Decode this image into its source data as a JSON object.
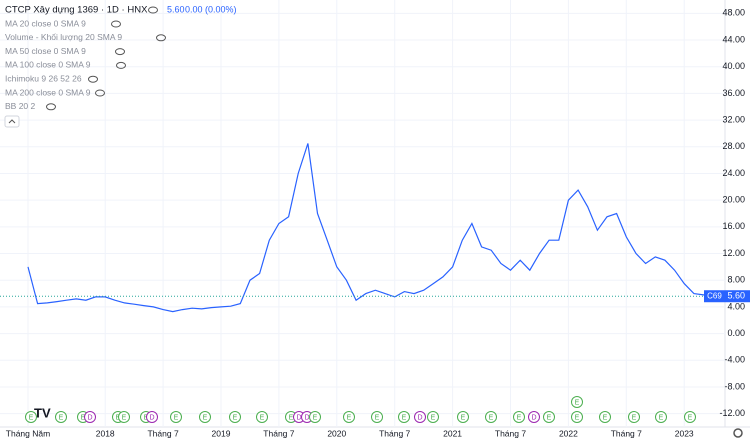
{
  "chart_data": {
    "type": "line",
    "title": "CTCP Xây dựng 1369 · 1D · HNX",
    "last": "5.60",
    "change": "0.00 (0.00%)",
    "indicators": [
      "MA 20 close 0 SMA 9",
      "Volume - Khối lượng 20 SMA 9",
      "MA 50 close 0 SMA 9",
      "MA 100 close 0 SMA 9",
      "Ichimoku 9 26 52 26",
      "MA 200 close 0 SMA 9",
      "BB 20 2"
    ],
    "ticker": "C69",
    "last_price": {
      "value": 5.6,
      "label": "5.60"
    },
    "color": "#2962ff",
    "categories": [
      "Tháng Năm",
      null,
      null,
      null,
      null,
      null,
      null,
      null,
      "2018",
      null,
      null,
      null,
      null,
      null,
      "Tháng 7",
      null,
      null,
      null,
      null,
      null,
      "2019",
      null,
      null,
      null,
      null,
      null,
      "Tháng 7",
      null,
      null,
      null,
      null,
      null,
      "2020",
      null,
      null,
      null,
      null,
      null,
      "Tháng 7",
      null,
      null,
      null,
      null,
      null,
      "2021",
      null,
      null,
      null,
      null,
      null,
      "Tháng 7",
      null,
      null,
      null,
      null,
      null,
      "2022",
      null,
      null,
      null,
      null,
      null,
      "Tháng 7",
      null,
      null,
      null,
      null,
      null,
      "2023",
      null,
      null,
      null
    ],
    "values": [
      10,
      4.5,
      4.6,
      4.8,
      5,
      5.2,
      5,
      5.5,
      5.5,
      5,
      4.6,
      4.4,
      4.2,
      4,
      3.6,
      3.3,
      3.6,
      3.8,
      3.7,
      3.9,
      4,
      4.1,
      4.5,
      8,
      9,
      14,
      16.5,
      17.5,
      24,
      28.5,
      18,
      14,
      10,
      8,
      5,
      6,
      6.5,
      6,
      5.5,
      6.3,
      6,
      6.5,
      7.5,
      8.5,
      10,
      14,
      16.5,
      13,
      12.5,
      10.5,
      9.5,
      11,
      9.5,
      12,
      14,
      14,
      20,
      21.5,
      19,
      15.5,
      17.5,
      18,
      14.5,
      12,
      10.5,
      11.5,
      11,
      9.5,
      7.5,
      6,
      5.8,
      5.6
    ],
    "ylim": [
      -14,
      50
    ],
    "yticks": [
      {
        "value": -12,
        "label": "-12.00"
      },
      {
        "value": -8,
        "label": "-8.00"
      },
      {
        "value": -4,
        "label": "-4.00"
      },
      {
        "value": 0,
        "label": "0.00"
      },
      {
        "value": 4,
        "label": "4.00"
      },
      {
        "value": 8,
        "label": "8.00"
      },
      {
        "value": 12,
        "label": "12.00"
      },
      {
        "value": 16,
        "label": "16.00"
      },
      {
        "value": 20,
        "label": "20.00"
      },
      {
        "value": 24,
        "label": "24.00"
      },
      {
        "value": 28,
        "label": "28.00"
      },
      {
        "value": 32,
        "label": "32.00"
      },
      {
        "value": 36,
        "label": "36.00"
      },
      {
        "value": 40,
        "label": "40.00"
      },
      {
        "value": 44,
        "label": "44.00"
      },
      {
        "value": 48,
        "label": "48.00"
      }
    ],
    "grid": true,
    "events": [
      "E",
      "E",
      "E",
      "D",
      "E",
      "E",
      "E",
      "D",
      "E",
      "E",
      "E",
      "E",
      "E",
      "D",
      "D",
      "E",
      "E",
      "E",
      "E",
      "D",
      "E",
      "E",
      "E",
      "E",
      "D",
      "E",
      "E",
      "E",
      "E",
      "E",
      "E",
      "E"
    ]
  }
}
